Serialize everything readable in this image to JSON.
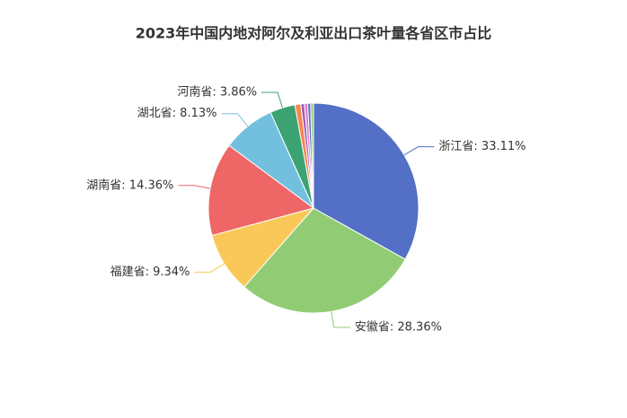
{
  "chart_data": {
    "type": "pie",
    "title": "2023年中国内地对阿尔及利亚出口茶叶量各省区市占比",
    "values": [
      33.11,
      28.36,
      9.34,
      14.36,
      8.13,
      3.86,
      0.9,
      0.55,
      0.5,
      0.45,
      0.44
    ],
    "value_labels": [
      "浙江省: 33.11%",
      "安徽省: 28.36%",
      "福建省: 9.34%",
      "湖南省: 14.36%",
      "湖北省: 8.13%",
      "河南省: 3.86%",
      null,
      null,
      null,
      null,
      null
    ],
    "colors": [
      "#5470c6",
      "#91cc75",
      "#fac858",
      "#ee6666",
      "#73c0de",
      "#3ba272",
      "#fc8452",
      "#9a60b4",
      "#ea7ccc",
      "#5470c6",
      "#91cc75"
    ]
  }
}
